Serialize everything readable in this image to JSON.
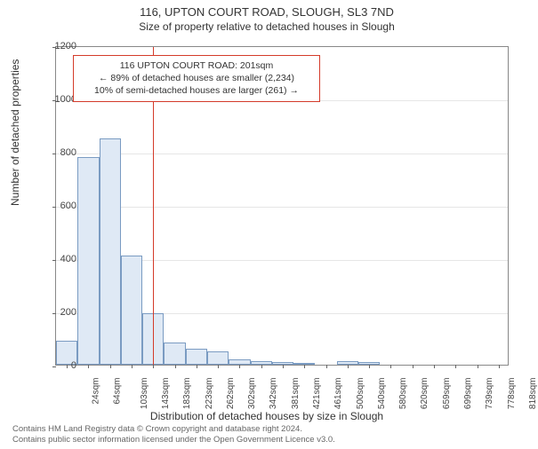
{
  "title": "116, UPTON COURT ROAD, SLOUGH, SL3 7ND",
  "subtitle": "Size of property relative to detached houses in Slough",
  "chart": {
    "type": "histogram",
    "ylabel": "Number of detached properties",
    "xlabel": "Distribution of detached houses by size in Slough",
    "ylim": [
      0,
      1200
    ],
    "ytick_step": 200,
    "bar_fill": "#dfe9f5",
    "bar_border": "#7a9bc2",
    "grid_color": "#e6e6e6",
    "axis_color": "#888888",
    "background_color": "#ffffff",
    "reference_line": {
      "x_index": 4.5,
      "color": "#d43b2a",
      "value_sqm": 201
    },
    "categories": [
      "24sqm",
      "64sqm",
      "103sqm",
      "143sqm",
      "183sqm",
      "223sqm",
      "262sqm",
      "302sqm",
      "342sqm",
      "381sqm",
      "421sqm",
      "461sqm",
      "500sqm",
      "540sqm",
      "580sqm",
      "620sqm",
      "659sqm",
      "699sqm",
      "739sqm",
      "778sqm",
      "818sqm"
    ],
    "values": [
      90,
      780,
      850,
      410,
      195,
      85,
      60,
      50,
      20,
      15,
      10,
      5,
      0,
      15,
      10,
      0,
      0,
      0,
      0,
      0,
      0
    ],
    "label_fontsize": 12,
    "tick_fontsize": 11
  },
  "annotation": {
    "line1": "116 UPTON COURT ROAD: 201sqm",
    "line2": "← 89% of detached houses are smaller (2,234)",
    "line3": "10% of semi-detached houses are larger (261) →",
    "border_color": "#d43b2a"
  },
  "footer": {
    "line1": "Contains HM Land Registry data © Crown copyright and database right 2024.",
    "line2": "Contains public sector information licensed under the Open Government Licence v3.0."
  }
}
